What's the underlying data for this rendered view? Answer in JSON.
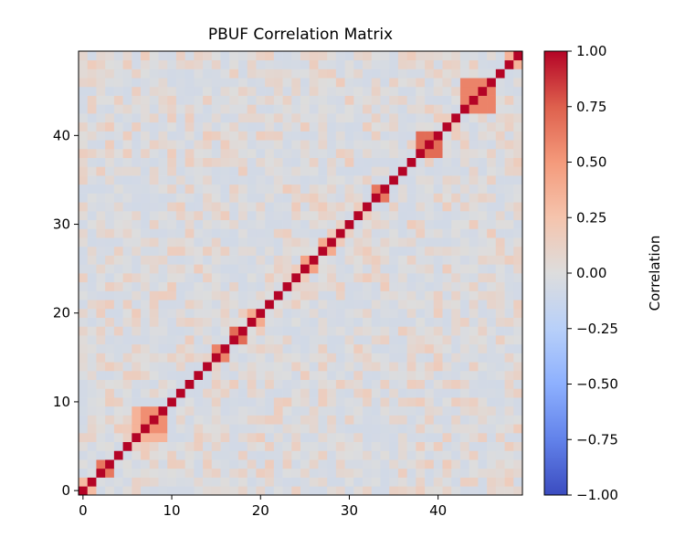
{
  "chart_data": {
    "type": "heatmap",
    "title": "PBUF Correlation Matrix",
    "size": 50,
    "x_range": [
      0,
      49
    ],
    "y_range": [
      0,
      49
    ],
    "origin": "lower",
    "xticks": [
      0,
      10,
      20,
      30,
      40
    ],
    "yticks": [
      0,
      10,
      20,
      30,
      40
    ],
    "colormap": "coolwarm",
    "vmin": -1.0,
    "vmax": 1.0,
    "colorbar_label": "Correlation",
    "colorbar_ticks": [
      "1.00",
      "0.75",
      "0.50",
      "0.25",
      "0.00",
      "−0.25",
      "−0.50",
      "−0.75",
      "−1.00"
    ],
    "colorbar_tick_values": [
      1.0,
      0.75,
      0.5,
      0.25,
      0.0,
      -0.25,
      -0.5,
      -0.75,
      -1.0
    ],
    "diagonal_value": 1.0,
    "blocks": [
      {
        "indices": [
          0,
          1
        ],
        "offdiag": 0.3
      },
      {
        "indices": [
          2,
          3
        ],
        "offdiag": 0.65
      },
      {
        "indices": [
          6,
          7,
          8,
          9
        ],
        "offdiag": 0.35
      },
      {
        "indices": [
          7,
          8,
          9
        ],
        "offdiag": 0.55
      },
      {
        "indices": [
          15,
          16
        ],
        "offdiag": 0.6
      },
      {
        "indices": [
          17,
          18
        ],
        "offdiag": 0.7
      },
      {
        "indices": [
          19,
          20
        ],
        "offdiag": 0.4
      },
      {
        "indices": [
          25,
          26
        ],
        "offdiag": 0.45
      },
      {
        "indices": [
          27,
          28
        ],
        "offdiag": 0.4
      },
      {
        "indices": [
          33,
          34
        ],
        "offdiag": 0.65
      },
      {
        "indices": [
          38,
          39,
          40
        ],
        "offdiag": 0.7
      },
      {
        "indices": [
          43,
          44,
          45,
          46
        ],
        "offdiag": 0.6
      },
      {
        "indices": [
          48,
          49
        ],
        "offdiag": 0.35
      }
    ],
    "background_range": [
      -0.08,
      0.18
    ]
  }
}
